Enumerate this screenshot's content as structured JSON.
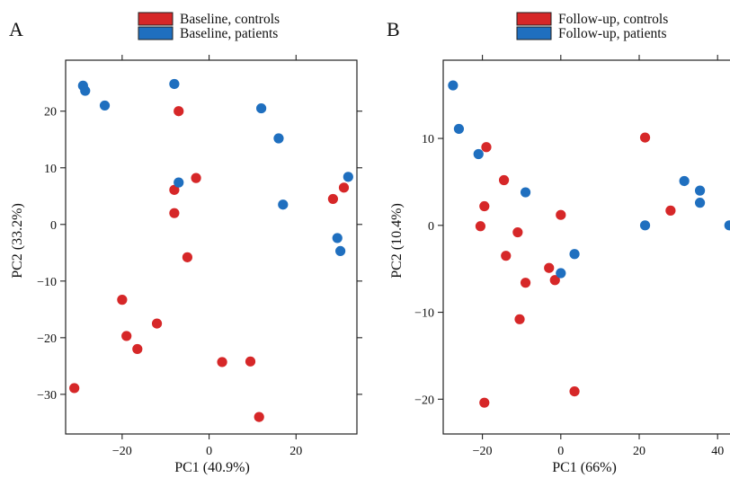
{
  "colors": {
    "controls": "#d62728",
    "patients": "#1f6fbf"
  },
  "panels": [
    {
      "letter": "A"
    },
    {
      "letter": "B"
    }
  ],
  "chart_data": [
    {
      "type": "scatter",
      "panel": "A",
      "title": "",
      "xlabel": "PC1 (40.9%)",
      "ylabel": "PC2 (33.2%)",
      "xlim": [
        -33,
        34
      ],
      "ylim": [
        -37,
        29
      ],
      "xticks": [
        -20,
        0,
        20
      ],
      "yticks": [
        -30,
        -20,
        -10,
        0,
        10,
        20
      ],
      "xtick_labels": [
        "−20",
        "0",
        "20"
      ],
      "ytick_labels": [
        "−30",
        "−20",
        "−10",
        "0",
        "10",
        "20"
      ],
      "grid": false,
      "legend_position": "top-center",
      "series": [
        {
          "name": "Baseline, controls",
          "color": "#d62728",
          "points": [
            [
              -7,
              20
            ],
            [
              -3,
              8.2
            ],
            [
              -8,
              6.1
            ],
            [
              -8,
              2
            ],
            [
              -5,
              -5.8
            ],
            [
              28.5,
              4.5
            ],
            [
              31,
              6.5
            ],
            [
              -20,
              -13.3
            ],
            [
              -12,
              -17.5
            ],
            [
              -19,
              -19.7
            ],
            [
              -16.5,
              -22
            ],
            [
              -31,
              -28.9
            ],
            [
              3,
              -24.3
            ],
            [
              9.5,
              -24.2
            ],
            [
              11.5,
              -34
            ]
          ]
        },
        {
          "name": "Baseline, patients",
          "color": "#1f6fbf",
          "points": [
            [
              -29,
              24.5
            ],
            [
              -28.5,
              23.6
            ],
            [
              -24,
              21
            ],
            [
              -8,
              24.8
            ],
            [
              12,
              20.5
            ],
            [
              16,
              15.2
            ],
            [
              -7,
              7.4
            ],
            [
              17,
              3.5
            ],
            [
              32,
              8.4
            ],
            [
              29.5,
              -2.4
            ],
            [
              30.2,
              -4.7
            ]
          ]
        }
      ]
    },
    {
      "type": "scatter",
      "panel": "B",
      "title": "",
      "xlabel": "PC1 (66%)",
      "ylabel": "PC2 (10.4%)",
      "xlim": [
        -30,
        45
      ],
      "ylim": [
        -24,
        19
      ],
      "xticks": [
        -20,
        0,
        20,
        40
      ],
      "yticks": [
        -20,
        -10,
        0,
        10
      ],
      "xtick_labels": [
        "−20",
        "0",
        "20",
        "40"
      ],
      "ytick_labels": [
        "−20",
        "−10",
        "0",
        "10"
      ],
      "grid": false,
      "legend_position": "top-center",
      "series": [
        {
          "name": "Follow-up, controls",
          "color": "#d62728",
          "points": [
            [
              -19,
              9
            ],
            [
              -14.5,
              5.2
            ],
            [
              -19.5,
              2.2
            ],
            [
              -20.5,
              -0.1
            ],
            [
              -11,
              -0.8
            ],
            [
              -14,
              -3.5
            ],
            [
              -9,
              -6.6
            ],
            [
              -3,
              -4.9
            ],
            [
              -1.5,
              -6.3
            ],
            [
              0,
              1.2
            ],
            [
              -10.5,
              -10.8
            ],
            [
              3.5,
              -19.1
            ],
            [
              -19.5,
              -20.4
            ],
            [
              21.5,
              10.1
            ],
            [
              28,
              1.7
            ]
          ]
        },
        {
          "name": "Follow-up, patients",
          "color": "#1f6fbf",
          "points": [
            [
              -27.5,
              16.1
            ],
            [
              -26,
              11.1
            ],
            [
              -21,
              8.2
            ],
            [
              -9,
              3.8
            ],
            [
              0,
              -5.5
            ],
            [
              3.5,
              -3.3
            ],
            [
              21.5,
              0
            ],
            [
              31.5,
              5.1
            ],
            [
              35.5,
              4
            ],
            [
              35.5,
              2.6
            ],
            [
              43,
              0
            ]
          ]
        }
      ]
    }
  ]
}
